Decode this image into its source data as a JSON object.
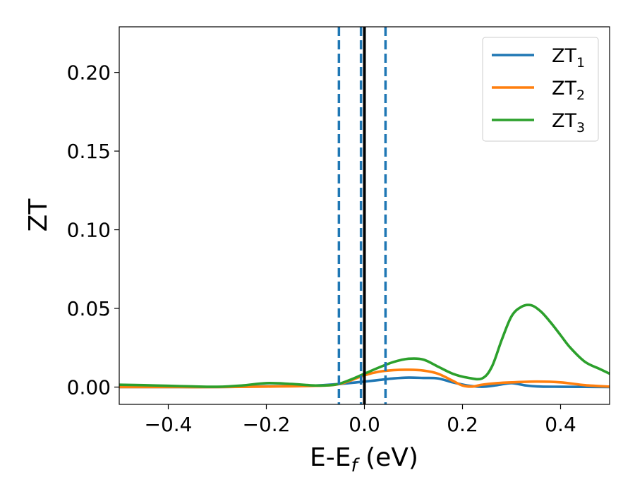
{
  "chart_data": {
    "type": "line",
    "xlabel": "E-E",
    "xlabel_subscript": "f",
    "xlabel_unit": " (eV)",
    "ylabel": "ZT",
    "xlim": [
      -0.5,
      0.5
    ],
    "ylim": [
      -0.011,
      0.229
    ],
    "xticks": [
      -0.4,
      -0.2,
      0.0,
      0.2,
      0.4
    ],
    "xtick_labels": [
      "−0.4",
      "−0.2",
      "0.0",
      "0.2",
      "0.4"
    ],
    "yticks": [
      0.0,
      0.05,
      0.1,
      0.15,
      0.2
    ],
    "ytick_labels": [
      "0.00",
      "0.05",
      "0.10",
      "0.15",
      "0.20"
    ],
    "grid": false,
    "legend_position": "top-right",
    "vlines": [
      {
        "x": -0.052,
        "style": "dashed",
        "color": "#1f77b4"
      },
      {
        "x": -0.007,
        "style": "dashed",
        "color": "#1f77b4"
      },
      {
        "x": 0.043,
        "style": "dashed",
        "color": "#1f77b4"
      },
      {
        "x": 0.0,
        "style": "solid",
        "color": "#000000"
      }
    ],
    "series": [
      {
        "name": "ZT",
        "name_sub": "1",
        "color": "#1f77b4",
        "x": [
          -0.5,
          -0.4,
          -0.3,
          -0.2,
          -0.1,
          -0.05,
          0.0,
          0.03,
          0.06,
          0.09,
          0.12,
          0.15,
          0.18,
          0.21,
          0.24,
          0.27,
          0.3,
          0.33,
          0.36,
          0.4,
          0.45,
          0.5
        ],
        "y": [
          0.0,
          0.0,
          0.0,
          0.0005,
          0.001,
          0.002,
          0.0035,
          0.0045,
          0.0055,
          0.006,
          0.0058,
          0.0055,
          0.003,
          0.001,
          0.0002,
          0.0012,
          0.0025,
          0.001,
          0.0003,
          0.0002,
          0.0001,
          0.0
        ]
      },
      {
        "name": "ZT",
        "name_sub": "2",
        "color": "#ff7f0e",
        "x": [
          -0.5,
          -0.4,
          -0.3,
          -0.2,
          -0.1,
          -0.05,
          0.0,
          0.03,
          0.06,
          0.09,
          0.12,
          0.15,
          0.18,
          0.2,
          0.22,
          0.24,
          0.27,
          0.3,
          0.35,
          0.4,
          0.45,
          0.5
        ],
        "y": [
          0.0,
          0.0,
          0.0,
          0.0003,
          0.0008,
          0.002,
          0.0075,
          0.0098,
          0.0108,
          0.011,
          0.0105,
          0.0085,
          0.004,
          0.001,
          0.0003,
          0.0015,
          0.0025,
          0.003,
          0.0035,
          0.003,
          0.0012,
          0.0003
        ]
      },
      {
        "name": "ZT",
        "name_sub": "3",
        "color": "#2ca02c",
        "x": [
          -0.5,
          -0.45,
          -0.4,
          -0.35,
          -0.3,
          -0.25,
          -0.2,
          -0.15,
          -0.1,
          -0.06,
          -0.03,
          0.0,
          0.03,
          0.06,
          0.09,
          0.12,
          0.15,
          0.18,
          0.21,
          0.24,
          0.26,
          0.28,
          0.3,
          0.32,
          0.34,
          0.36,
          0.38,
          0.4,
          0.42,
          0.45,
          0.48,
          0.5
        ],
        "y": [
          0.0015,
          0.0012,
          0.0008,
          0.0004,
          0.0002,
          0.001,
          0.0025,
          0.002,
          0.001,
          0.0015,
          0.0045,
          0.0085,
          0.0125,
          0.016,
          0.018,
          0.0175,
          0.013,
          0.0085,
          0.006,
          0.0055,
          0.013,
          0.03,
          0.045,
          0.051,
          0.052,
          0.048,
          0.041,
          0.033,
          0.025,
          0.016,
          0.0115,
          0.0085
        ]
      }
    ]
  }
}
